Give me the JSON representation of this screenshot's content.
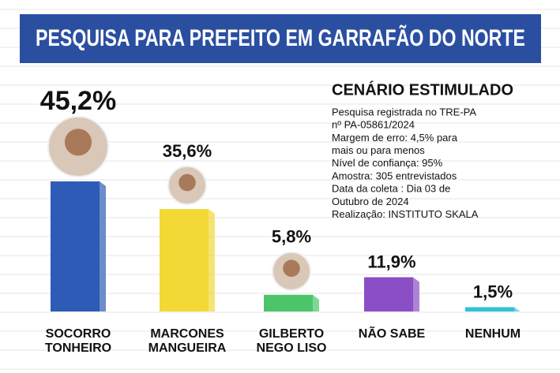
{
  "chart_data": {
    "type": "bar",
    "title": "PESQUISA PARA PREFEITO EM GARRAFÃO DO NORTE",
    "categories": [
      [
        "SOCORRO",
        "TONHEIRO"
      ],
      [
        "MARCONES",
        "MANGUEIRA"
      ],
      [
        "GILBERTO",
        "NEGO LISO"
      ],
      [
        "NÃO SABE"
      ],
      [
        "NENHUM"
      ]
    ],
    "values": [
      45.2,
      35.6,
      5.8,
      11.9,
      1.5
    ],
    "value_labels": [
      "45,2%",
      "35,6%",
      "5,8%",
      "11,9%",
      "1,5%"
    ],
    "colors": [
      "#2d5bb5",
      "#f2d936",
      "#4cc46a",
      "#8a4fc4",
      "#30c0d8"
    ],
    "note_title": "CENÁRIO ESTIMULADO",
    "note_lines": [
      "Pesquisa registrada no TRE-PA",
      "nº PA-05861/2024",
      "Margem de erro: 4,5% para",
      "mais ou para menos",
      "Nível de confiança: 95%",
      "Amostra: 305 entrevistados",
      "Data da coleta : Dia 03 de",
      "Outubro de 2024",
      "Realização: INSTITUTO SKALA"
    ]
  }
}
